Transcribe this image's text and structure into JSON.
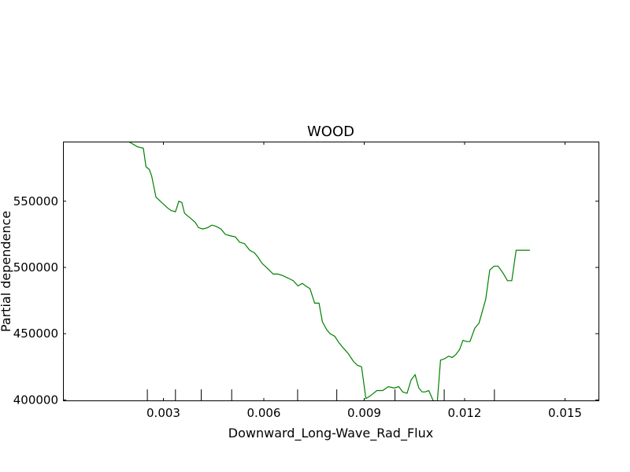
{
  "chart_data": {
    "type": "line",
    "title": "WOOD",
    "xlabel": "Downward_Long-Wave_Rad_Flux",
    "ylabel": "Partial dependence",
    "xlim": [
      0.0,
      0.016
    ],
    "ylim": [
      399000,
      595000
    ],
    "xticks": [
      0.003,
      0.006,
      0.009,
      0.012,
      0.015
    ],
    "xtick_labels": [
      "0.003",
      "0.006",
      "0.009",
      "0.012",
      "0.015"
    ],
    "yticks": [
      400000,
      450000,
      500000,
      550000
    ],
    "ytick_labels": [
      "400000",
      "450000",
      "500000",
      "550000"
    ],
    "rug": [
      0.00252,
      0.00336,
      0.00413,
      0.00504,
      0.00701,
      0.00818,
      0.00992,
      0.01139,
      0.01289
    ],
    "grid": false,
    "series": [
      {
        "color": "#008000",
        "x": [
          0.00196,
          0.00223,
          0.0024,
          0.00248,
          0.00258,
          0.00265,
          0.00278,
          0.00295,
          0.00312,
          0.00323,
          0.00336,
          0.00346,
          0.00355,
          0.00363,
          0.00372,
          0.00382,
          0.00395,
          0.00405,
          0.00418,
          0.00432,
          0.00445,
          0.00458,
          0.00472,
          0.00485,
          0.00498,
          0.00515,
          0.00528,
          0.00542,
          0.00558,
          0.00572,
          0.00582,
          0.00595,
          0.00612,
          0.00628,
          0.00642,
          0.00655,
          0.00672,
          0.00688,
          0.00702,
          0.00715,
          0.00725,
          0.00738,
          0.00752,
          0.00765,
          0.00775,
          0.00788,
          0.00798,
          0.00812,
          0.00825,
          0.00838,
          0.00852,
          0.00868,
          0.0088,
          0.00892,
          0.00905,
          0.00918,
          0.00938,
          0.00955,
          0.00972,
          0.0099,
          0.01003,
          0.01015,
          0.01028,
          0.0104,
          0.01052,
          0.01063,
          0.01073,
          0.01082,
          0.01093,
          0.01105,
          0.01118,
          0.01128,
          0.0114,
          0.01152,
          0.01163,
          0.01173,
          0.01185,
          0.01195,
          0.01206,
          0.01216,
          0.0123,
          0.01243,
          0.01252,
          0.01263,
          0.01275,
          0.01288,
          0.013,
          0.01314,
          0.01328,
          0.01341,
          0.01354,
          0.01364,
          0.01374,
          0.01386,
          0.01395
        ],
        "y": [
          595000,
          591000,
          590000,
          576000,
          574000,
          569000,
          553000,
          549000,
          545000,
          543000,
          542000,
          550000,
          549000,
          541000,
          539000,
          537000,
          534000,
          530000,
          529000,
          530000,
          532000,
          531000,
          529000,
          525000,
          524000,
          523000,
          519000,
          518000,
          513000,
          511000,
          508000,
          503000,
          499000,
          495000,
          495000,
          494000,
          492000,
          490000,
          486000,
          488000,
          486000,
          484000,
          473000,
          473000,
          459000,
          453000,
          450000,
          448000,
          443000,
          439000,
          435000,
          429000,
          426000,
          425000,
          401000,
          403000,
          407000,
          407000,
          410000,
          409000,
          410000,
          406000,
          405000,
          415000,
          419000,
          409000,
          406000,
          406000,
          407000,
          400000,
          397000,
          430000,
          431000,
          433000,
          432000,
          434000,
          438000,
          445000,
          444000,
          444000,
          454000,
          458000,
          466000,
          476000,
          498000,
          501000,
          501000,
          496000,
          490000,
          490000,
          513000,
          513000,
          513000,
          513000,
          513000
        ]
      }
    ]
  }
}
